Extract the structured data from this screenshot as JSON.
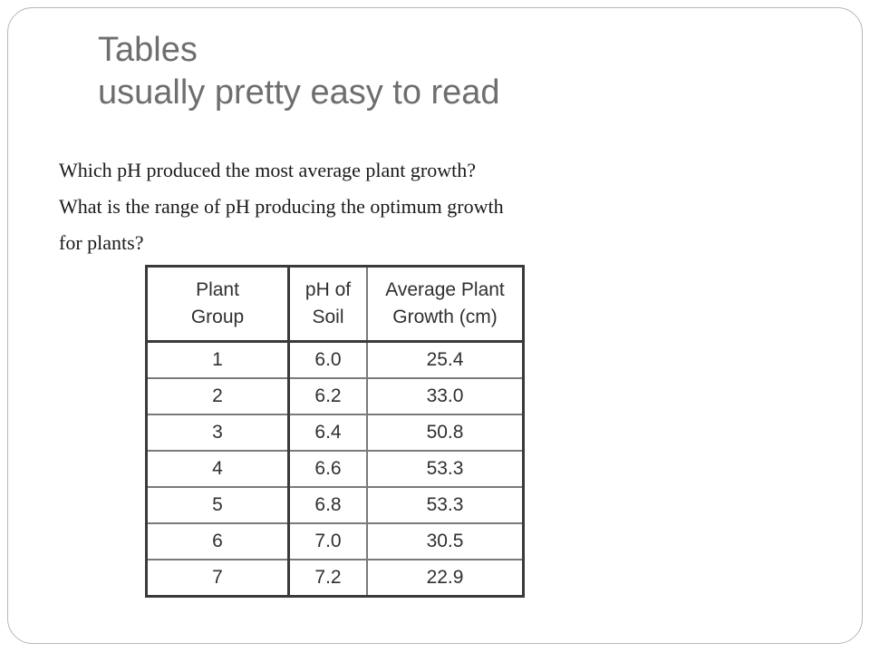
{
  "slide": {
    "title_line1": "Tables",
    "title_line2": "usually pretty easy to read",
    "question_line1": "Which pH produced the most average plant growth?",
    "question_line2": "What is the range of pH producing the optimum growth",
    "question_line3": "for plants?"
  },
  "table": {
    "headers": [
      {
        "line1": "Plant",
        "line2": "Group"
      },
      {
        "line1": "pH of",
        "line2": "Soil"
      },
      {
        "line1": "Average Plant",
        "line2": "Growth (cm)"
      }
    ],
    "rows": [
      [
        "1",
        "6.0",
        "25.4"
      ],
      [
        "2",
        "6.2",
        "33.0"
      ],
      [
        "3",
        "6.4",
        "50.8"
      ],
      [
        "4",
        "6.6",
        "53.3"
      ],
      [
        "5",
        "6.8",
        "53.3"
      ],
      [
        "6",
        "7.0",
        "30.5"
      ],
      [
        "7",
        "7.2",
        "22.9"
      ]
    ]
  }
}
